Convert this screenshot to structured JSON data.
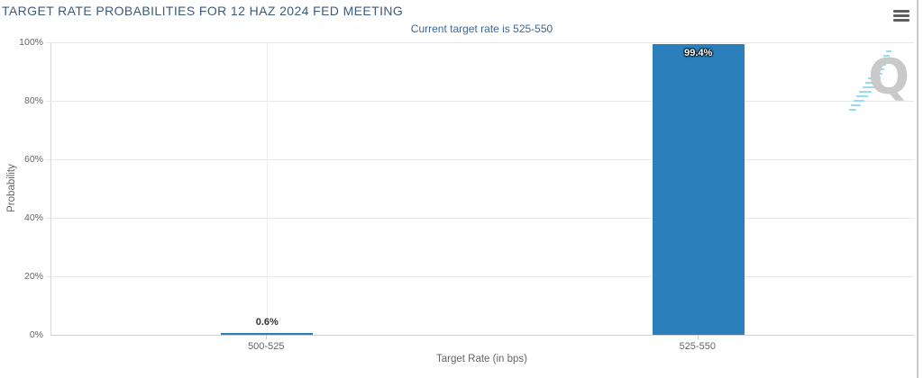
{
  "chart_data": {
    "type": "bar",
    "title": "TARGET RATE PROBABILITIES FOR 12 HAZ 2024 FED MEETING",
    "subtitle": "Current target rate is 525-550",
    "categories": [
      "500-525",
      "525-550"
    ],
    "values": [
      0.6,
      99.4
    ],
    "value_labels": [
      "0.6%",
      "99.4%"
    ],
    "xlabel": "Target Rate (in bps)",
    "ylabel": "Probability",
    "ylim": [
      0,
      100
    ],
    "yticks": [
      "0%",
      "20%",
      "40%",
      "60%",
      "80%",
      "100%"
    ],
    "grid": "horizontal",
    "legend": "none",
    "bar_color": "#2b7fba"
  },
  "menu": {
    "icon": "hamburger-menu-icon"
  },
  "watermark": {
    "letter": "Q",
    "letter_color": "#c9c9c9",
    "hatch_color": "#99dbef"
  },
  "colors": {
    "title_text": "#3b5a7c",
    "subtitle_text": "#3e6693",
    "axis_text": "#666666",
    "gridline": "#e7e7e7",
    "bar": "#2b7fba",
    "panel_border": "#cccccc"
  }
}
